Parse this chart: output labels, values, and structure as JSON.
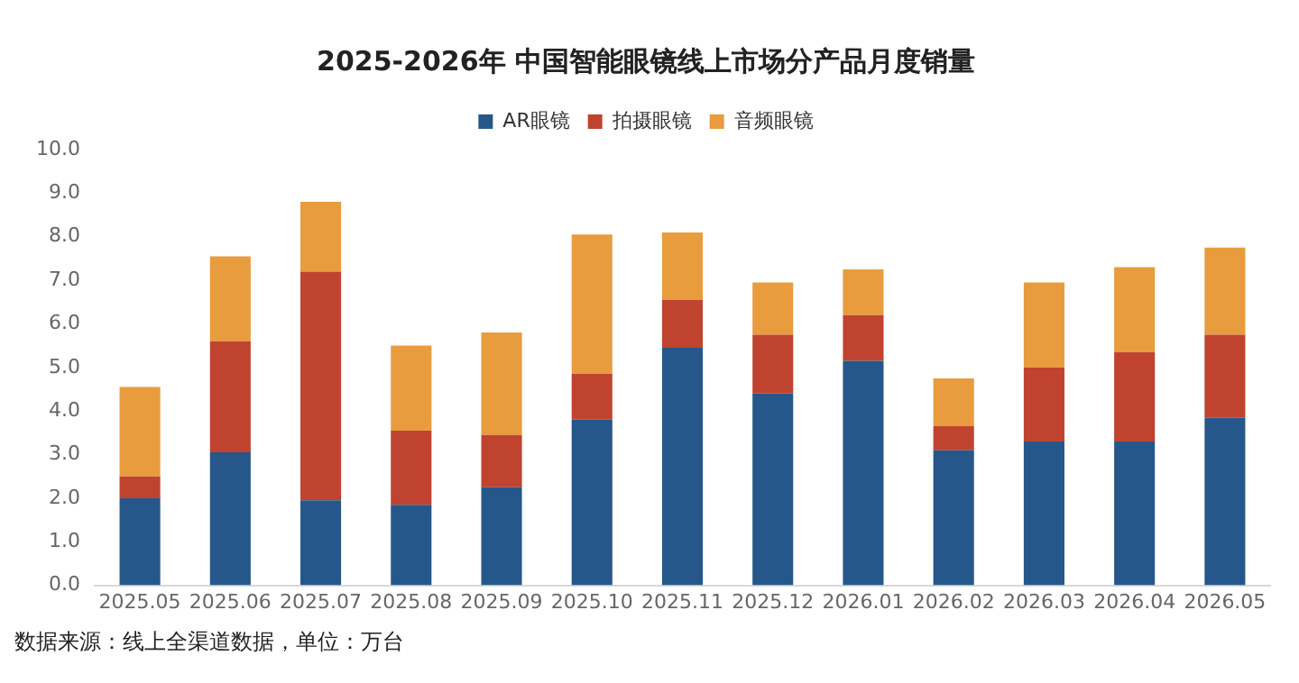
{
  "chart_data": {
    "type": "bar",
    "title": "2025-2026年 中国智能眼镜线上市场分产品月度销量",
    "categories": [
      "2025.05",
      "2025.06",
      "2025.07",
      "2025.08",
      "2025.09",
      "2025.10",
      "2025.11",
      "2025.12",
      "2026.01",
      "2026.02",
      "2026.03",
      "2026.04",
      "2026.05"
    ],
    "series": [
      {
        "name": "AR眼镜",
        "color": "#25578a",
        "values": [
          2.0,
          3.05,
          1.95,
          1.85,
          2.25,
          3.8,
          5.45,
          4.4,
          5.15,
          3.1,
          3.3,
          3.3,
          3.85
        ]
      },
      {
        "name": "拍摄眼镜",
        "color": "#c0432f",
        "values": [
          0.5,
          2.55,
          5.25,
          1.7,
          1.2,
          1.05,
          1.1,
          1.35,
          1.05,
          0.55,
          1.7,
          2.05,
          1.9
        ]
      },
      {
        "name": "音频眼镜",
        "color": "#e89c3e",
        "values": [
          2.05,
          1.95,
          1.6,
          1.95,
          2.35,
          3.2,
          1.55,
          1.2,
          1.05,
          1.1,
          1.95,
          1.95,
          2.0
        ]
      }
    ],
    "stacked": true,
    "ylim": [
      0,
      10
    ],
    "yticks": [
      {
        "value": 0,
        "label": "0.0"
      },
      {
        "value": 1,
        "label": "1.0"
      },
      {
        "value": 2,
        "label": "2.0"
      },
      {
        "value": 3,
        "label": "3.0"
      },
      {
        "value": 4,
        "label": "4.0"
      },
      {
        "value": 5,
        "label": "5.0"
      },
      {
        "value": 6,
        "label": "6.0"
      },
      {
        "value": 7,
        "label": "7.0"
      },
      {
        "value": 8,
        "label": "8.0"
      },
      {
        "value": 9,
        "label": "9.0"
      },
      {
        "value": 10,
        "label": "10.0"
      }
    ],
    "grid": false,
    "legend": "top",
    "annotations": [
      "数据来源：线上全渠道数据，单位：万台"
    ]
  }
}
